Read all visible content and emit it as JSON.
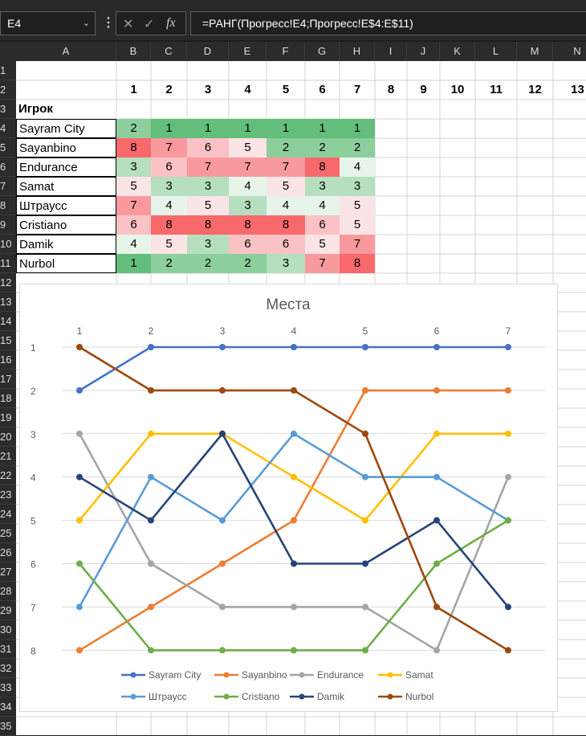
{
  "namebox": {
    "value": "E4"
  },
  "formula_bar": {
    "fx": "fx",
    "formula": "=РАНГ(Прогресс!E4;Прогресс!E$4:E$11)"
  },
  "columns": [
    "A",
    "B",
    "C",
    "D",
    "E",
    "F",
    "G",
    "H",
    "I",
    "J",
    "K",
    "L",
    "M",
    "N"
  ],
  "rows": [
    "1",
    "2",
    "3",
    "4",
    "5",
    "6",
    "7",
    "8",
    "9",
    "10",
    "11",
    "12",
    "13",
    "14",
    "15",
    "16",
    "17",
    "18",
    "19",
    "20",
    "21",
    "22",
    "23",
    "24",
    "25",
    "26",
    "27",
    "28",
    "29",
    "30",
    "31",
    "32",
    "33",
    "34",
    "35"
  ],
  "header_row": [
    "1",
    "2",
    "3",
    "4",
    "5",
    "6",
    "7",
    "8",
    "9",
    "10",
    "11",
    "12",
    "13"
  ],
  "table": {
    "title": "Игрок",
    "players": [
      {
        "name": "Sayram City",
        "ranks": [
          2,
          1,
          1,
          1,
          1,
          1,
          1
        ]
      },
      {
        "name": "Sayanbino",
        "ranks": [
          8,
          7,
          6,
          5,
          2,
          2,
          2
        ]
      },
      {
        "name": "Endurance",
        "ranks": [
          3,
          6,
          7,
          7,
          7,
          8,
          4
        ]
      },
      {
        "name": "Samat",
        "ranks": [
          5,
          3,
          3,
          4,
          5,
          3,
          3
        ]
      },
      {
        "name": "Штраусс",
        "ranks": [
          7,
          4,
          5,
          3,
          4,
          4,
          5
        ]
      },
      {
        "name": "Cristiano",
        "ranks": [
          6,
          8,
          8,
          8,
          8,
          6,
          5
        ]
      },
      {
        "name": "Damik",
        "ranks": [
          4,
          5,
          3,
          6,
          6,
          5,
          7
        ]
      },
      {
        "name": "Nurbol",
        "ranks": [
          1,
          2,
          2,
          2,
          3,
          7,
          8
        ]
      }
    ]
  },
  "heat_colors": {
    "1": "#63be7b",
    "2": "#8ccf9c",
    "3": "#b5dfbe",
    "4": "#e6f4e9",
    "5": "#fbe4e5",
    "6": "#fac2c4",
    "7": "#f89a9d",
    "8": "#f8696b"
  },
  "chart_data": {
    "type": "line",
    "title": "Места",
    "categories": [
      "1",
      "2",
      "3",
      "4",
      "5",
      "6",
      "7"
    ],
    "y_ticks": [
      "1",
      "2",
      "3",
      "4",
      "5",
      "6",
      "7",
      "8"
    ],
    "ylim": [
      1,
      8
    ],
    "y_inverted": true,
    "grid": true,
    "legend_position": "bottom",
    "series": [
      {
        "name": "Sayram City",
        "color": "#4472c4",
        "values": [
          2,
          1,
          1,
          1,
          1,
          1,
          1
        ]
      },
      {
        "name": "Sayanbino",
        "color": "#ed7d31",
        "values": [
          8,
          7,
          6,
          5,
          2,
          2,
          2
        ]
      },
      {
        "name": "Endurance",
        "color": "#a5a5a5",
        "values": [
          3,
          6,
          7,
          7,
          7,
          8,
          4
        ]
      },
      {
        "name": "Samat",
        "color": "#ffc000",
        "values": [
          5,
          3,
          3,
          4,
          5,
          3,
          3
        ]
      },
      {
        "name": "Штраусс",
        "color": "#5b9bd5",
        "values": [
          7,
          4,
          5,
          3,
          4,
          4,
          5
        ]
      },
      {
        "name": "Cristiano",
        "color": "#70ad47",
        "values": [
          6,
          8,
          8,
          8,
          8,
          6,
          5
        ]
      },
      {
        "name": "Damik",
        "color": "#264478",
        "values": [
          4,
          5,
          3,
          6,
          6,
          5,
          7
        ]
      },
      {
        "name": "Nurbol",
        "color": "#9e480e",
        "values": [
          1,
          2,
          2,
          2,
          3,
          7,
          8
        ]
      }
    ]
  }
}
